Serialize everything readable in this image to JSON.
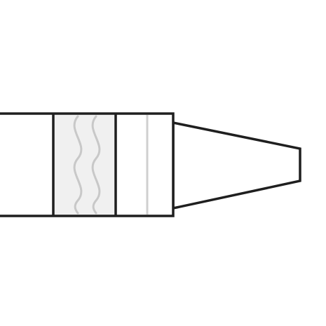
{
  "icon": {
    "name": "connector-plug-icon",
    "colors": {
      "background": "#ffffff",
      "outline": "#1f1f1f",
      "grip_fill": "#f0f0f0",
      "grip_lines": "#c8c8c8",
      "ring_line": "#cfcfcf",
      "body_fill": "#ffffff"
    }
  }
}
